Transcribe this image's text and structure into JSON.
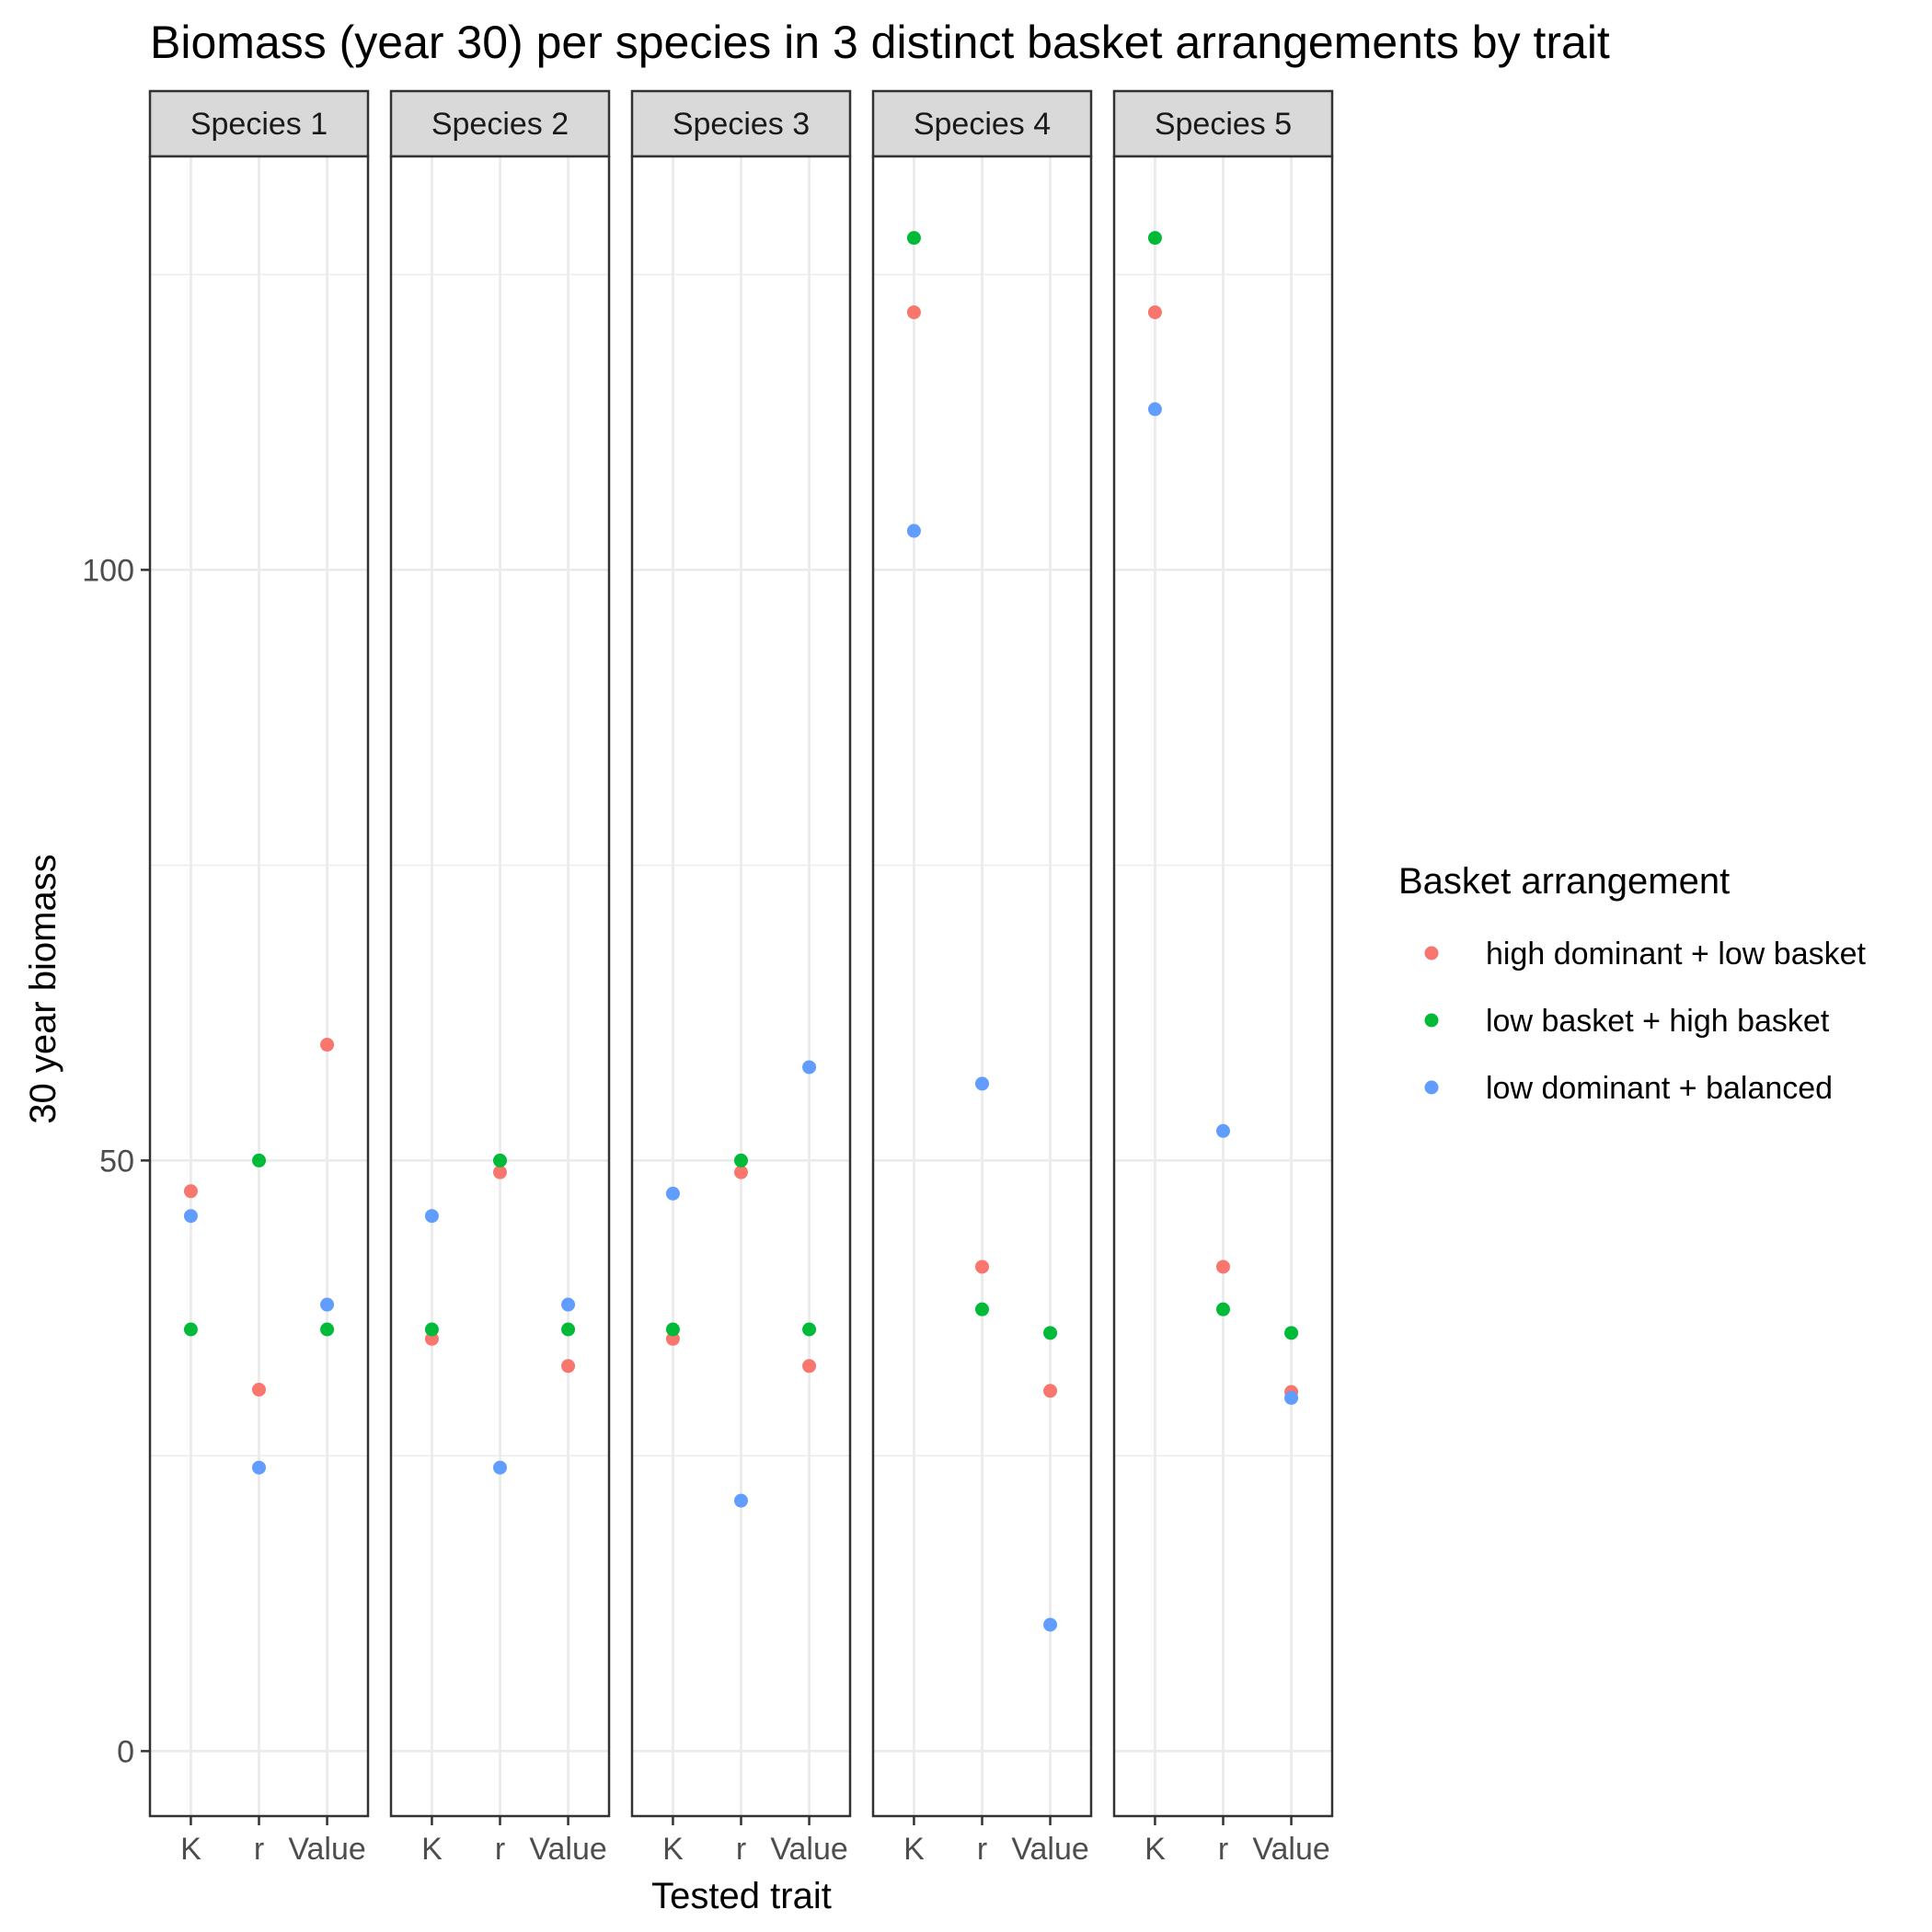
{
  "chart_data": {
    "type": "scatter",
    "title": "Biomass (year 30) per species in 3 distinct basket arrangements by trait",
    "xlabel": "Tested trait",
    "ylabel": "30 year biomass",
    "x_categories": [
      "K",
      "r",
      "Value"
    ],
    "y_range": [
      -5.5,
      135
    ],
    "y_ticks": [
      0,
      50,
      100
    ],
    "y_minor_ticks": [
      25,
      75,
      125
    ],
    "grid": true,
    "legend": {
      "title": "Basket arrangement",
      "position": "right"
    },
    "series": [
      {
        "name": "high dominant + low basket",
        "color": "#F8766D"
      },
      {
        "name": "low basket + high basket",
        "color": "#00BA38"
      },
      {
        "name": "low dominant + balanced",
        "color": "#619CFF"
      }
    ],
    "facets": [
      {
        "label": "Species 1",
        "values": [
          [
            47.4,
            30.6,
            59.8
          ],
          [
            35.7,
            50.0,
            35.7
          ],
          [
            45.3,
            24.0,
            37.8
          ]
        ]
      },
      {
        "label": "Species 2",
        "values": [
          [
            34.9,
            49.0,
            32.6
          ],
          [
            35.7,
            50.0,
            35.7
          ],
          [
            45.3,
            24.0,
            37.8
          ]
        ]
      },
      {
        "label": "Species 3",
        "values": [
          [
            34.9,
            49.0,
            32.6
          ],
          [
            35.7,
            50.0,
            35.7
          ],
          [
            47.2,
            21.2,
            57.9
          ]
        ]
      },
      {
        "label": "Species 4",
        "values": [
          [
            121.8,
            41.0,
            30.5
          ],
          [
            128.1,
            37.4,
            35.4
          ],
          [
            103.3,
            56.5,
            10.7
          ]
        ]
      },
      {
        "label": "Species 5",
        "values": [
          [
            121.8,
            41.0,
            30.4
          ],
          [
            128.1,
            37.4,
            35.4
          ],
          [
            113.6,
            52.5,
            29.9
          ]
        ]
      }
    ]
  }
}
